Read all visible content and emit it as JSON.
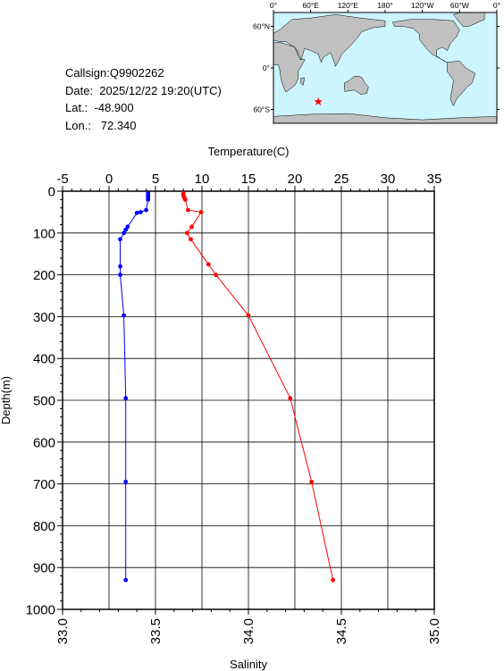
{
  "meta": {
    "callsign": "Callsign:Q9902262",
    "date": "Date:  2025/12/22 19:20(UTC)",
    "lat": "Lat.:  -48.900",
    "lon": "Lon.:   72.340"
  },
  "map": {
    "top_labels": [
      "0°",
      "60°E",
      "120°E",
      "180°",
      "120°W",
      "60°W",
      "0°"
    ],
    "side_labels": [
      "60°N",
      "0°",
      "60°S"
    ],
    "ocean_color": "#cdf5ff",
    "land_color": "#c0c0c0",
    "marker": {
      "lat": -48.9,
      "lon": 72.34,
      "symbol": "star",
      "color": "#ff0000"
    }
  },
  "chart_data": {
    "type": "line",
    "title": "",
    "top_axis": {
      "label": "Temperature(C)",
      "range": [
        -5,
        35
      ],
      "ticks": [
        "-5",
        "0",
        "5",
        "10",
        "15",
        "20",
        "25",
        "30",
        "35"
      ]
    },
    "bottom_axis": {
      "label": "Salinity",
      "range": [
        33.0,
        35.0
      ],
      "ticks": [
        "33.0",
        "33.5",
        "34.0",
        "34.5",
        "35.0"
      ]
    },
    "y_axis": {
      "label": "Depth(m)",
      "range": [
        0,
        1000
      ],
      "inverted": true,
      "ticks": [
        "0",
        "100",
        "200",
        "300",
        "400",
        "500",
        "600",
        "700",
        "800",
        "900",
        "1000"
      ]
    },
    "grid": true,
    "series": [
      {
        "axis": "temperature",
        "color": "#ff0000",
        "points": [
          [
            8.0,
            5
          ],
          [
            8.0,
            10
          ],
          [
            8.1,
            15
          ],
          [
            8.2,
            20
          ],
          [
            8.5,
            45
          ],
          [
            9.9,
            50
          ],
          [
            8.9,
            85
          ],
          [
            8.4,
            100
          ],
          [
            8.8,
            115
          ],
          [
            10.7,
            175
          ],
          [
            11.5,
            200
          ],
          [
            15.0,
            297
          ],
          [
            19.5,
            495
          ],
          [
            21.8,
            695
          ],
          [
            24.1,
            930
          ]
        ]
      },
      {
        "axis": "salinity",
        "color": "#0000ff",
        "points": [
          [
            33.46,
            5
          ],
          [
            33.46,
            10
          ],
          [
            33.46,
            15
          ],
          [
            33.46,
            20
          ],
          [
            33.45,
            45
          ],
          [
            33.42,
            50
          ],
          [
            33.4,
            52
          ],
          [
            33.35,
            85
          ],
          [
            33.34,
            92
          ],
          [
            33.33,
            100
          ],
          [
            33.31,
            115
          ],
          [
            33.31,
            180
          ],
          [
            33.31,
            200
          ],
          [
            33.33,
            297
          ],
          [
            33.34,
            495
          ],
          [
            33.34,
            695
          ],
          [
            33.34,
            930
          ]
        ]
      }
    ]
  }
}
